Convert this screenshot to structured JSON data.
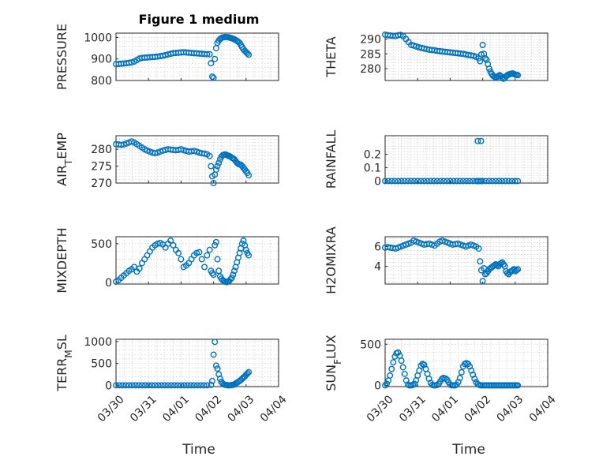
{
  "figure": {
    "title": "Figure 1 medium",
    "xlabel": "Time"
  },
  "x_ticks": [
    "03/30",
    "03/31",
    "04/01",
    "04/02",
    "04/03",
    "04/04"
  ],
  "colors": {
    "marker": "#0072BD",
    "axis": "#262626"
  },
  "chart_data": [
    {
      "type": "scatter",
      "ylabel": "PRESSURE",
      "ylim": [
        800,
        1020
      ],
      "yticks": [
        "800",
        "900",
        "1000"
      ],
      "ytick_values": [
        800,
        900,
        1000
      ],
      "x": [
        0.0,
        0.08,
        0.16,
        0.24,
        0.32,
        0.4,
        0.48,
        0.56,
        0.64,
        0.72,
        0.8,
        0.88,
        0.96,
        1.04,
        1.12,
        1.2,
        1.28,
        1.36,
        1.44,
        1.52,
        1.6,
        1.68,
        1.76,
        1.84,
        1.92,
        2.0,
        2.08,
        2.16,
        2.24,
        2.32,
        2.4,
        2.48,
        2.56,
        2.64,
        2.72,
        2.8,
        2.88,
        2.92,
        2.96,
        3.0,
        3.04,
        3.08,
        3.12,
        3.16,
        3.2,
        3.24,
        3.28,
        3.32,
        3.36,
        3.4,
        3.44,
        3.48,
        3.52,
        3.56,
        3.6,
        3.64,
        3.68,
        3.72,
        3.76,
        3.8,
        3.84,
        3.88,
        3.92,
        3.96,
        4.0,
        4.04,
        4.08
      ],
      "y": [
        876,
        877,
        878,
        879,
        880,
        882,
        884,
        888,
        895,
        902,
        905,
        906,
        907,
        908,
        909,
        910,
        911,
        913,
        915,
        918,
        921,
        924,
        927,
        928,
        929,
        930,
        931,
        930,
        929,
        928,
        927,
        926,
        925,
        924,
        923,
        922,
        922,
        880,
        818,
        812,
        900,
        950,
        975,
        985,
        992,
        997,
        1000,
        1001,
        1002,
        1002,
        1001,
        1000,
        998,
        996,
        994,
        991,
        988,
        984,
        980,
        975,
        965,
        955,
        945,
        938,
        932,
        926,
        920
      ]
    },
    {
      "type": "scatter",
      "ylabel": "THETA",
      "ylim": [
        276,
        292
      ],
      "yticks": [
        "280",
        "285",
        "290"
      ],
      "ytick_values": [
        280,
        285,
        290
      ],
      "x": [
        0.0,
        0.08,
        0.16,
        0.24,
        0.32,
        0.4,
        0.48,
        0.56,
        0.64,
        0.72,
        0.8,
        0.88,
        0.96,
        1.04,
        1.12,
        1.2,
        1.28,
        1.36,
        1.44,
        1.52,
        1.6,
        1.68,
        1.76,
        1.84,
        1.92,
        2.0,
        2.08,
        2.16,
        2.24,
        2.32,
        2.4,
        2.48,
        2.56,
        2.64,
        2.72,
        2.8,
        2.88,
        2.92,
        2.96,
        3.0,
        3.04,
        3.08,
        3.12,
        3.16,
        3.2,
        3.24,
        3.28,
        3.32,
        3.36,
        3.4,
        3.44,
        3.48,
        3.52,
        3.56,
        3.6,
        3.64,
        3.68,
        3.72,
        3.76,
        3.8,
        3.84,
        3.88,
        3.92,
        3.96,
        4.0,
        4.04,
        4.08
      ],
      "y": [
        291.5,
        291.3,
        291.2,
        291.1,
        291.0,
        291.3,
        291.4,
        291.0,
        290.0,
        289.0,
        288.0,
        287.8,
        287.5,
        287.2,
        287.0,
        286.8,
        286.6,
        286.4,
        286.3,
        286.2,
        286.0,
        285.9,
        285.8,
        285.7,
        285.6,
        285.5,
        285.4,
        285.3,
        285.2,
        285.1,
        285.0,
        284.8,
        284.6,
        284.5,
        284.3,
        284.0,
        283.5,
        282.5,
        284.8,
        288.0,
        285.0,
        283.5,
        283.0,
        281.5,
        280.0,
        279.0,
        278.2,
        277.6,
        277.3,
        277.0,
        277.2,
        277.5,
        277.8,
        277.5,
        277.0,
        276.6,
        276.8,
        277.4,
        277.8,
        278.0,
        278.2,
        278.3,
        278.4,
        278.2,
        278.0,
        277.9,
        277.8
      ]
    },
    {
      "type": "scatter",
      "ylabel": "AIR_TEMP",
      "ylim": [
        270,
        284
      ],
      "yticks": [
        "270",
        "275",
        "280"
      ],
      "ytick_values": [
        270,
        275,
        280
      ],
      "x": [
        0.0,
        0.08,
        0.16,
        0.24,
        0.32,
        0.4,
        0.48,
        0.56,
        0.64,
        0.72,
        0.8,
        0.88,
        0.96,
        1.04,
        1.12,
        1.2,
        1.28,
        1.36,
        1.44,
        1.52,
        1.6,
        1.68,
        1.76,
        1.84,
        1.92,
        2.0,
        2.08,
        2.16,
        2.24,
        2.32,
        2.4,
        2.48,
        2.56,
        2.64,
        2.72,
        2.8,
        2.88,
        2.92,
        2.96,
        3.0,
        3.04,
        3.08,
        3.12,
        3.16,
        3.2,
        3.24,
        3.28,
        3.32,
        3.36,
        3.4,
        3.44,
        3.48,
        3.52,
        3.56,
        3.6,
        3.64,
        3.68,
        3.72,
        3.76,
        3.8,
        3.84,
        3.88,
        3.92,
        3.96,
        4.0,
        4.04,
        4.08
      ],
      "y": [
        281.5,
        281.4,
        281.3,
        281.4,
        281.7,
        282.0,
        282.3,
        282.0,
        281.5,
        281.0,
        280.5,
        280.0,
        279.6,
        279.3,
        279.0,
        278.8,
        279.0,
        279.3,
        279.6,
        279.8,
        280.0,
        279.9,
        279.8,
        279.7,
        279.8,
        280.0,
        279.7,
        279.5,
        279.3,
        279.4,
        279.5,
        279.3,
        279.0,
        278.8,
        278.7,
        278.5,
        278.0,
        275.0,
        272.0,
        270.0,
        272.5,
        274.0,
        275.0,
        276.0,
        277.0,
        277.8,
        278.2,
        278.4,
        278.5,
        278.3,
        278.1,
        278.0,
        277.8,
        277.5,
        277.3,
        277.0,
        276.5,
        276.0,
        275.7,
        275.5,
        275.4,
        275.0,
        274.5,
        274.0,
        273.5,
        273.0,
        272.3
      ]
    },
    {
      "type": "scatter",
      "ylabel": "RAINFALL",
      "ylim": [
        -0.015,
        0.34
      ],
      "yticks": [
        "0",
        "0.1",
        "0.2"
      ],
      "ytick_values": [
        0,
        0.1,
        0.2
      ],
      "x": [
        0.0,
        0.1,
        0.2,
        0.3,
        0.4,
        0.5,
        0.6,
        0.7,
        0.8,
        0.9,
        1.0,
        1.1,
        1.2,
        1.3,
        1.4,
        1.5,
        1.6,
        1.7,
        1.8,
        1.9,
        2.0,
        2.1,
        2.2,
        2.3,
        2.4,
        2.5,
        2.6,
        2.7,
        2.8,
        2.85,
        2.9,
        2.95,
        3.0,
        3.1,
        3.2,
        3.3,
        3.4,
        3.5,
        3.6,
        3.7,
        3.8,
        3.9,
        4.0,
        4.08,
        2.85,
        2.95
      ],
      "y": [
        0,
        0,
        0,
        0,
        0,
        0,
        0,
        0,
        0,
        0,
        0,
        0,
        0,
        0,
        0,
        0,
        0,
        0,
        0,
        0,
        0,
        0,
        0,
        0,
        0,
        0,
        0,
        0,
        0,
        0,
        0,
        0,
        0,
        0,
        0,
        0,
        0,
        0,
        0,
        0,
        0,
        0,
        0,
        0,
        0.3,
        0.3
      ]
    },
    {
      "type": "scatter",
      "ylabel": "MIXDEPTH",
      "ylim": [
        -20,
        590
      ],
      "yticks": [
        "0",
        "500"
      ],
      "ytick_values": [
        0,
        500
      ],
      "x": [
        0.0,
        0.08,
        0.16,
        0.24,
        0.32,
        0.4,
        0.48,
        0.56,
        0.64,
        0.72,
        0.8,
        0.88,
        0.96,
        1.04,
        1.12,
        1.2,
        1.28,
        1.36,
        1.44,
        1.52,
        1.6,
        1.68,
        1.76,
        1.84,
        1.92,
        2.0,
        2.08,
        2.16,
        2.24,
        2.32,
        2.4,
        2.48,
        2.56,
        2.64,
        2.72,
        2.8,
        2.88,
        2.92,
        2.96,
        3.0,
        3.04,
        3.08,
        3.12,
        3.16,
        3.2,
        3.24,
        3.28,
        3.32,
        3.36,
        3.4,
        3.44,
        3.48,
        3.52,
        3.56,
        3.6,
        3.64,
        3.68,
        3.72,
        3.76,
        3.8,
        3.84,
        3.88,
        3.92,
        3.96,
        4.0,
        4.04,
        4.08
      ],
      "y": [
        10,
        30,
        60,
        90,
        120,
        150,
        170,
        200,
        140,
        180,
        250,
        300,
        350,
        400,
        450,
        480,
        500,
        510,
        490,
        450,
        500,
        540,
        480,
        420,
        380,
        300,
        200,
        220,
        250,
        300,
        350,
        380,
        390,
        300,
        200,
        350,
        420,
        150,
        120,
        100,
        480,
        520,
        300,
        150,
        80,
        50,
        30,
        20,
        10,
        5,
        10,
        20,
        40,
        60,
        100,
        150,
        200,
        260,
        320,
        380,
        440,
        500,
        540,
        480,
        420,
        380,
        350
      ]
    },
    {
      "type": "scatter",
      "ylabel": "H2OMIXRA",
      "ylim": [
        2.2,
        7.0
      ],
      "yticks": [
        "4",
        "6"
      ],
      "ytick_values": [
        4,
        6
      ],
      "x": [
        0.0,
        0.08,
        0.16,
        0.24,
        0.32,
        0.4,
        0.48,
        0.56,
        0.64,
        0.72,
        0.8,
        0.88,
        0.96,
        1.04,
        1.12,
        1.2,
        1.28,
        1.36,
        1.44,
        1.52,
        1.6,
        1.68,
        1.76,
        1.84,
        1.92,
        2.0,
        2.08,
        2.16,
        2.24,
        2.32,
        2.4,
        2.48,
        2.56,
        2.64,
        2.72,
        2.8,
        2.88,
        2.92,
        2.96,
        3.0,
        3.04,
        3.08,
        3.12,
        3.16,
        3.2,
        3.24,
        3.28,
        3.32,
        3.36,
        3.4,
        3.44,
        3.48,
        3.52,
        3.56,
        3.6,
        3.64,
        3.68,
        3.72,
        3.76,
        3.8,
        3.84,
        3.88,
        3.92,
        3.96,
        4.0,
        4.04,
        4.08
      ],
      "y": [
        5.9,
        5.95,
        5.9,
        5.85,
        5.8,
        5.9,
        6.0,
        6.1,
        6.2,
        6.3,
        6.4,
        6.6,
        6.5,
        6.4,
        6.3,
        6.2,
        6.25,
        6.3,
        6.2,
        6.1,
        6.3,
        6.5,
        6.6,
        6.5,
        6.4,
        6.3,
        6.2,
        6.25,
        6.3,
        6.2,
        6.1,
        6.0,
        6.1,
        6.2,
        6.1,
        6.0,
        5.8,
        4.5,
        3.6,
        2.5,
        3.8,
        3.2,
        3.3,
        3.5,
        3.7,
        3.8,
        3.9,
        4.0,
        4.1,
        4.2,
        4.1,
        4.0,
        4.2,
        4.3,
        4.4,
        4.2,
        4.0,
        3.5,
        3.3,
        3.2,
        3.4,
        3.5,
        3.6,
        3.7,
        3.5,
        3.6,
        3.7
      ]
    },
    {
      "type": "scatter",
      "ylabel": "TERR_MSL",
      "ylim": [
        -30,
        1050
      ],
      "yticks": [
        "0",
        "500",
        "1000"
      ],
      "ytick_values": [
        0,
        500,
        1000
      ],
      "x": [
        0.0,
        0.1,
        0.2,
        0.3,
        0.4,
        0.5,
        0.6,
        0.7,
        0.8,
        0.9,
        1.0,
        1.1,
        1.2,
        1.3,
        1.4,
        1.5,
        1.6,
        1.7,
        1.8,
        1.9,
        2.0,
        2.1,
        2.2,
        2.3,
        2.4,
        2.5,
        2.6,
        2.7,
        2.8,
        2.92,
        2.96,
        3.0,
        3.04,
        3.08,
        3.12,
        3.16,
        3.2,
        3.24,
        3.28,
        3.32,
        3.36,
        3.4,
        3.44,
        3.48,
        3.52,
        3.56,
        3.6,
        3.64,
        3.68,
        3.72,
        3.76,
        3.8,
        3.84,
        3.88,
        3.92,
        3.96,
        4.0,
        4.04,
        4.08
      ],
      "y": [
        0,
        0,
        0,
        0,
        0,
        0,
        0,
        0,
        0,
        0,
        0,
        0,
        0,
        0,
        0,
        0,
        0,
        0,
        0,
        0,
        0,
        0,
        0,
        0,
        0,
        0,
        0,
        0,
        0,
        10,
        100,
        700,
        990,
        450,
        380,
        250,
        150,
        80,
        40,
        20,
        10,
        5,
        0,
        0,
        0,
        5,
        10,
        20,
        40,
        60,
        80,
        100,
        120,
        150,
        180,
        200,
        240,
        270,
        300
      ]
    },
    {
      "type": "scatter",
      "ylabel": "SUN_FLUX",
      "ylim": [
        -15,
        560
      ],
      "yticks": [
        "0",
        "500"
      ],
      "ytick_values": [
        0,
        500
      ],
      "x": [
        0.0,
        0.05,
        0.1,
        0.15,
        0.2,
        0.25,
        0.3,
        0.35,
        0.4,
        0.45,
        0.5,
        0.55,
        0.6,
        0.65,
        0.7,
        0.75,
        0.8,
        0.85,
        0.9,
        0.95,
        1.0,
        1.05,
        1.1,
        1.15,
        1.2,
        1.25,
        1.3,
        1.35,
        1.4,
        1.45,
        1.5,
        1.55,
        1.6,
        1.65,
        1.7,
        1.75,
        1.8,
        1.85,
        1.9,
        1.95,
        2.0,
        2.05,
        2.1,
        2.15,
        2.2,
        2.25,
        2.3,
        2.35,
        2.4,
        2.45,
        2.5,
        2.55,
        2.6,
        2.65,
        2.7,
        2.75,
        2.8,
        2.85,
        2.9,
        2.95,
        3.0,
        3.05,
        3.1,
        3.15,
        3.2,
        3.25,
        3.3,
        3.35,
        3.4,
        3.45,
        3.5,
        3.55,
        3.6,
        3.65,
        3.7,
        3.75,
        3.8,
        3.85,
        3.9,
        3.95,
        4.0,
        4.05,
        4.08
      ],
      "y": [
        0,
        20,
        60,
        120,
        200,
        280,
        350,
        390,
        400,
        360,
        300,
        220,
        140,
        60,
        10,
        0,
        0,
        5,
        20,
        60,
        120,
        180,
        240,
        260,
        250,
        200,
        140,
        80,
        30,
        5,
        0,
        0,
        5,
        20,
        50,
        80,
        90,
        85,
        70,
        40,
        10,
        0,
        0,
        0,
        10,
        40,
        90,
        160,
        230,
        260,
        270,
        260,
        230,
        180,
        130,
        80,
        40,
        15,
        5,
        0,
        0,
        0,
        0,
        0,
        0,
        0,
        0,
        0,
        0,
        0,
        0,
        0,
        0,
        0,
        0,
        0,
        0,
        0,
        0,
        0,
        0,
        0,
        0
      ]
    }
  ]
}
